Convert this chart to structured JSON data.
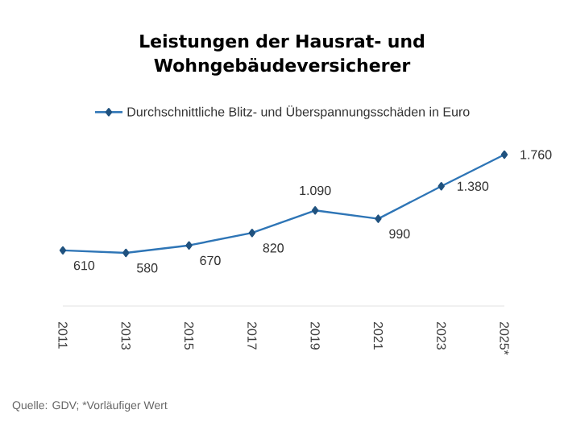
{
  "chart_data": {
    "type": "line",
    "title": "Leistungen der Hausrat- und Wohngebäudeversicherer",
    "categories": [
      "2011",
      "2013",
      "2015",
      "2017",
      "2019",
      "2021",
      "2023",
      "2025*"
    ],
    "series": [
      {
        "name": "Durchschnittliche Blitz- und Überspannungsschäden in Euro",
        "color": "#2e75b6",
        "values": [
          610,
          580,
          670,
          820,
          1090,
          990,
          1380,
          1760
        ],
        "value_labels": [
          "610",
          "580",
          "670",
          "820",
          "1.090",
          "990",
          "1.380",
          "1.760"
        ]
      }
    ],
    "tick_labels": "x",
    "marker": "diamond",
    "legend": "top",
    "grid": false,
    "annotations": [
      "Quelle: GDV; *Vorläufiger Wert"
    ]
  }
}
